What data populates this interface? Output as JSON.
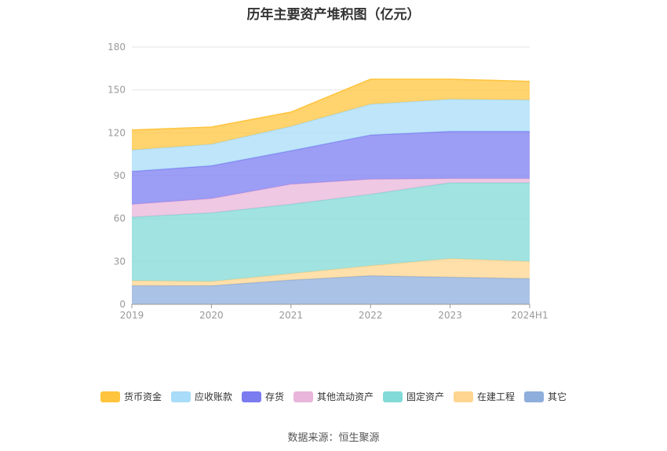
{
  "chart_data": {
    "type": "area",
    "stacked": true,
    "title": "历年主要资产堆积图（亿元）",
    "categories": [
      "2019",
      "2020",
      "2021",
      "2022",
      "2023",
      "2024H1"
    ],
    "ylim": [
      0,
      180
    ],
    "yticks": [
      0,
      30,
      60,
      90,
      120,
      150,
      180
    ],
    "grid": true,
    "legend_position": "bottom",
    "series": [
      {
        "name": "其它",
        "color": "#8eaedc",
        "values": [
          13,
          13,
          17,
          20,
          19,
          18
        ]
      },
      {
        "name": "在建工程",
        "color": "#ffd58f",
        "values": [
          3.5,
          3,
          4.5,
          7,
          13,
          12
        ]
      },
      {
        "name": "固定资产",
        "color": "#82dad7",
        "values": [
          44.5,
          48,
          48.5,
          50,
          53,
          55
        ]
      },
      {
        "name": "其他流动资产",
        "color": "#e9b5da",
        "values": [
          9,
          10,
          14,
          10.5,
          3,
          3
        ]
      },
      {
        "name": "存货",
        "color": "#7b7cf0",
        "values": [
          23,
          23,
          23.5,
          31,
          33,
          33
        ]
      },
      {
        "name": "应收账款",
        "color": "#a8dcf8",
        "values": [
          15,
          15,
          17,
          21.5,
          22.5,
          22
        ]
      },
      {
        "name": "货币资金",
        "color": "#ffc43d",
        "values": [
          14,
          12,
          10,
          17.5,
          14,
          13
        ]
      }
    ]
  },
  "legend_order": [
    "货币资金",
    "应收账款",
    "存货",
    "其他流动资产",
    "固定资产",
    "在建工程",
    "其它"
  ],
  "source": "数据来源：恒生聚源"
}
